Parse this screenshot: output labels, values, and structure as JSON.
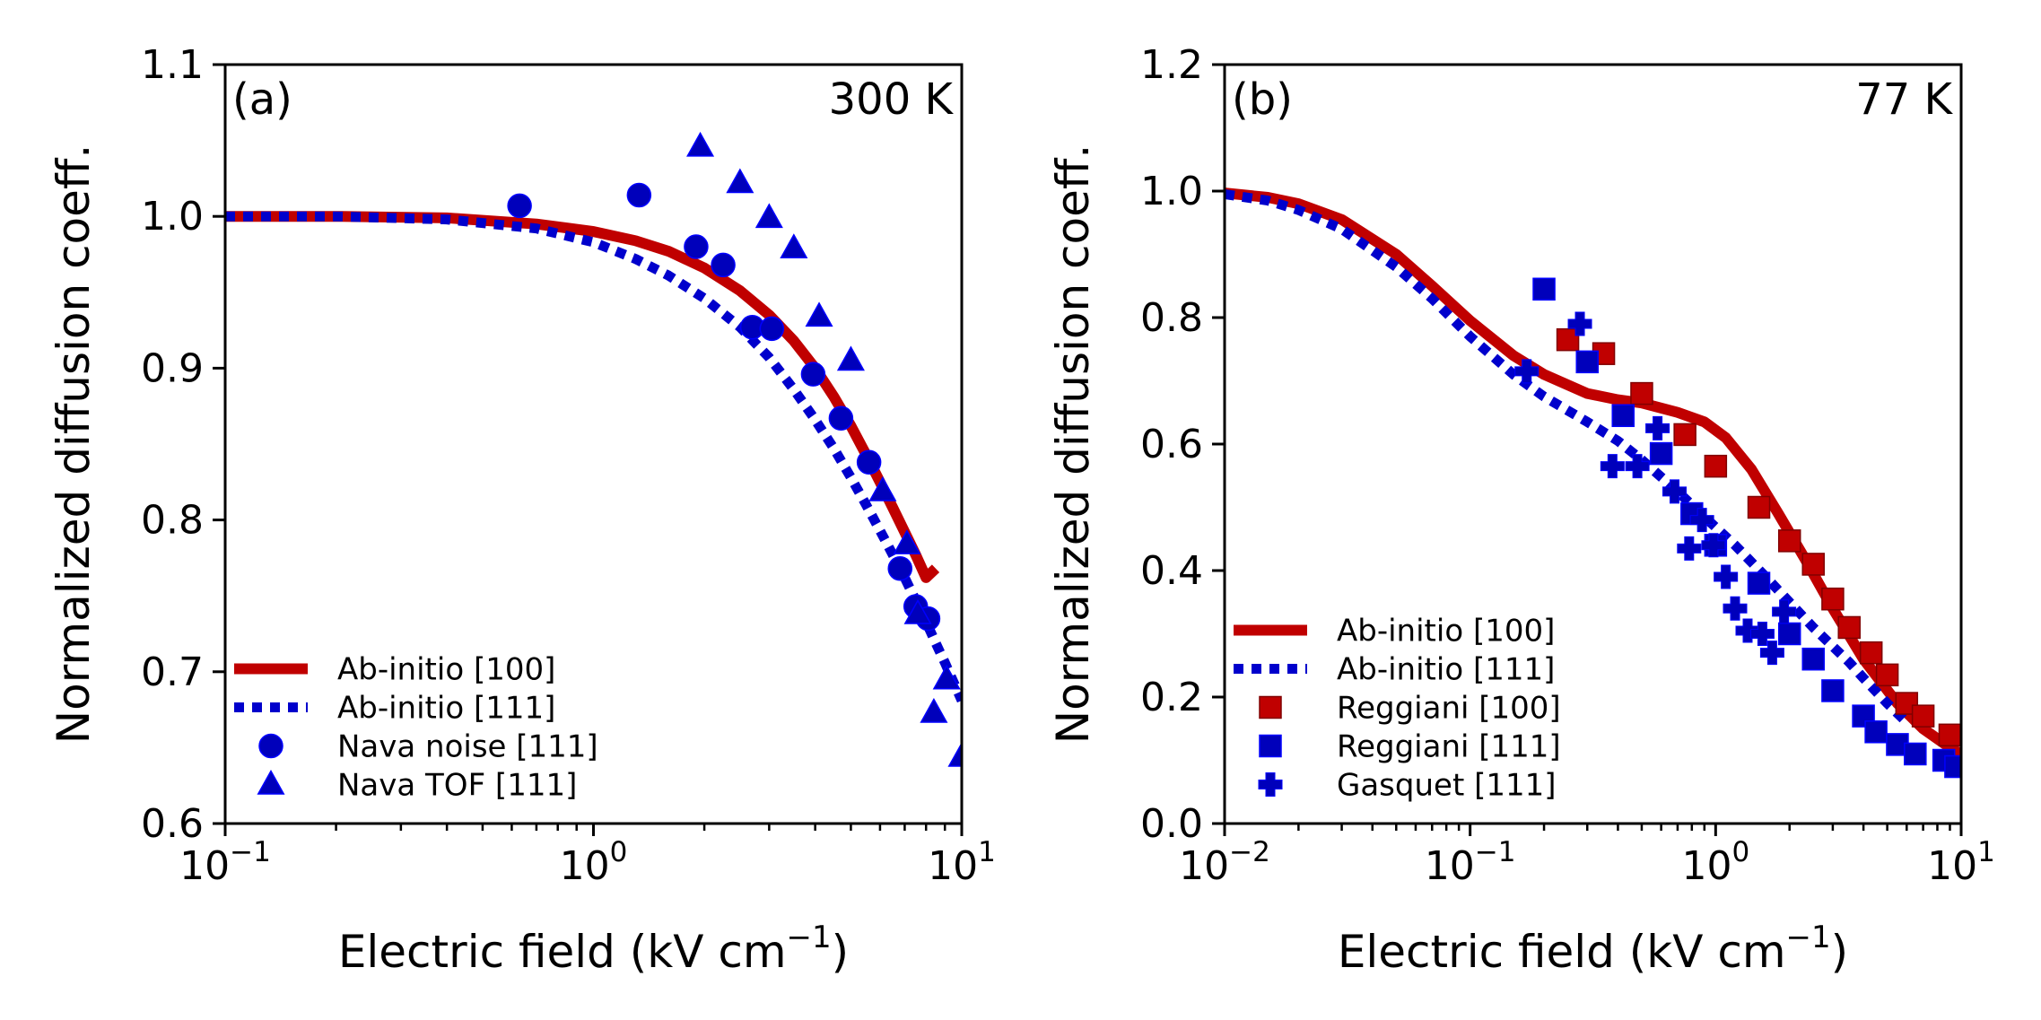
{
  "colors": {
    "red": "#c00000",
    "blue": "#0000cc",
    "marker_fill_red": "#c00000",
    "marker_fill_blue": "#0000bb",
    "marker_edge": "#0000ff"
  },
  "chart_data": [
    {
      "type": "line",
      "panel_label": "(a)",
      "temperature_label": "300 K",
      "xlabel_main": "Electric field (kV cm",
      "xlabel_sup": "−1",
      "xlabel_close": ")",
      "ylabel": "Normalized diffusion coeff.",
      "xscale": "log",
      "xlim": [
        0.1,
        10
      ],
      "ylim": [
        0.6,
        1.1
      ],
      "xticks": [
        {
          "value": 0.1,
          "base": "10",
          "exp": "−1"
        },
        {
          "value": 1,
          "base": "10",
          "exp": "0"
        },
        {
          "value": 10,
          "base": "10",
          "exp": "1"
        }
      ],
      "yticks": [
        {
          "value": 0.6,
          "label": "0.6"
        },
        {
          "value": 0.7,
          "label": "0.7"
        },
        {
          "value": 0.8,
          "label": "0.8"
        },
        {
          "value": 0.9,
          "label": "0.9"
        },
        {
          "value": 1.0,
          "label": "1.0"
        },
        {
          "value": 1.1,
          "label": "1.1"
        }
      ],
      "legend_position": "lower-left",
      "series": [
        {
          "name": "Ab-initio [100]",
          "kind": "line",
          "style": "solid",
          "color": "#c00000",
          "x": [
            0.1,
            0.2,
            0.4,
            0.7,
            1.0,
            1.3,
            1.6,
            2.0,
            2.5,
            3.0,
            3.5,
            4.0,
            4.5,
            5.0,
            5.5,
            6.0,
            6.5,
            7.0,
            7.5,
            8.0,
            8.5
          ],
          "y": [
            1.0,
            1.0,
            0.999,
            0.995,
            0.99,
            0.984,
            0.977,
            0.966,
            0.951,
            0.935,
            0.918,
            0.9,
            0.881,
            0.862,
            0.843,
            0.825,
            0.808,
            0.792,
            0.777,
            0.762,
            0.768
          ]
        },
        {
          "name": "Ab-initio [111]",
          "kind": "line",
          "style": "dotted",
          "color": "#0000cc",
          "x": [
            0.1,
            0.2,
            0.4,
            0.7,
            1.0,
            1.3,
            1.6,
            2.0,
            2.5,
            3.0,
            3.5,
            4.0,
            4.5,
            5.0,
            5.5,
            6.0,
            6.5,
            7.0,
            7.5,
            8.0,
            8.5,
            9.0,
            10.0
          ],
          "y": [
            1.0,
            1.0,
            0.998,
            0.992,
            0.983,
            0.972,
            0.961,
            0.946,
            0.927,
            0.907,
            0.886,
            0.866,
            0.847,
            0.828,
            0.81,
            0.793,
            0.777,
            0.762,
            0.747,
            0.733,
            0.719,
            0.706,
            0.681
          ]
        },
        {
          "name": "Nava noise [111]",
          "kind": "scatter",
          "marker": "circle",
          "color": "#0000bb",
          "x": [
            0.63,
            1.33,
            1.9,
            2.25,
            2.7,
            3.05,
            3.95,
            4.7,
            5.6,
            6.8,
            7.5,
            8.1
          ],
          "y": [
            1.007,
            1.014,
            0.98,
            0.968,
            0.927,
            0.926,
            0.896,
            0.867,
            0.838,
            0.768,
            0.743,
            0.735
          ]
        },
        {
          "name": "Nava TOF [111]",
          "kind": "scatter",
          "marker": "triangle",
          "color": "#0000bb",
          "x": [
            1.95,
            2.5,
            3.0,
            3.5,
            4.1,
            5.0,
            6.1,
            7.1,
            7.6,
            8.4,
            9.1,
            10.0
          ],
          "y": [
            1.046,
            1.022,
            0.999,
            0.979,
            0.934,
            0.905,
            0.819,
            0.784,
            0.738,
            0.673,
            0.695,
            0.644
          ]
        }
      ]
    },
    {
      "type": "line",
      "panel_label": "(b)",
      "temperature_label": "77 K",
      "xlabel_main": "Electric field (kV cm",
      "xlabel_sup": "−1",
      "xlabel_close": ")",
      "ylabel": "Normalized diffusion coeff.",
      "xscale": "log",
      "xlim": [
        0.01,
        10
      ],
      "ylim": [
        0.0,
        1.2
      ],
      "xticks": [
        {
          "value": 0.01,
          "base": "10",
          "exp": "−2"
        },
        {
          "value": 0.1,
          "base": "10",
          "exp": "−1"
        },
        {
          "value": 1,
          "base": "10",
          "exp": "0"
        },
        {
          "value": 10,
          "base": "10",
          "exp": "1"
        }
      ],
      "yticks": [
        {
          "value": 0.0,
          "label": "0.0"
        },
        {
          "value": 0.2,
          "label": "0.2"
        },
        {
          "value": 0.4,
          "label": "0.4"
        },
        {
          "value": 0.6,
          "label": "0.6"
        },
        {
          "value": 0.8,
          "label": "0.8"
        },
        {
          "value": 1.0,
          "label": "1.0"
        },
        {
          "value": 1.2,
          "label": "1.2"
        }
      ],
      "legend_position": "lower-left",
      "series": [
        {
          "name": "Ab-initio [100]",
          "kind": "line",
          "style": "solid",
          "color": "#c00000",
          "x": [
            0.01,
            0.015,
            0.02,
            0.03,
            0.05,
            0.07,
            0.1,
            0.15,
            0.2,
            0.3,
            0.4,
            0.5,
            0.7,
            0.9,
            1.1,
            1.4,
            1.8,
            2.3,
            3.0,
            4.0,
            5.5,
            7.0,
            9.0,
            10.0
          ],
          "y": [
            0.997,
            0.99,
            0.98,
            0.955,
            0.9,
            0.85,
            0.795,
            0.74,
            0.71,
            0.68,
            0.67,
            0.665,
            0.65,
            0.635,
            0.61,
            0.56,
            0.49,
            0.42,
            0.34,
            0.26,
            0.19,
            0.15,
            0.12,
            0.11
          ]
        },
        {
          "name": "Ab-initio [111]",
          "kind": "line",
          "style": "dotted",
          "color": "#0000cc",
          "x": [
            0.01,
            0.015,
            0.02,
            0.03,
            0.05,
            0.07,
            0.1,
            0.15,
            0.2,
            0.3,
            0.4,
            0.5,
            0.7,
            0.9,
            1.2,
            1.6,
            2.0,
            2.5,
            3.0,
            3.5,
            4.0,
            5.0,
            6.0
          ],
          "y": [
            0.995,
            0.985,
            0.97,
            0.94,
            0.88,
            0.83,
            0.77,
            0.71,
            0.675,
            0.635,
            0.605,
            0.575,
            0.525,
            0.485,
            0.44,
            0.39,
            0.35,
            0.31,
            0.28,
            0.255,
            0.23,
            0.19,
            0.16
          ]
        },
        {
          "name": "Reggiani [100]",
          "kind": "scatter",
          "marker": "square",
          "color": "#c00000",
          "x": [
            0.25,
            0.35,
            0.5,
            0.75,
            1.0,
            1.5,
            2.0,
            2.5,
            3.0,
            3.5,
            4.3,
            5.0,
            6.0,
            7.0,
            9.0
          ],
          "y": [
            0.765,
            0.743,
            0.68,
            0.615,
            0.565,
            0.5,
            0.447,
            0.41,
            0.355,
            0.31,
            0.27,
            0.235,
            0.19,
            0.17,
            0.14
          ]
        },
        {
          "name": "Reggiani [111]",
          "kind": "scatter",
          "marker": "square",
          "color": "#0000bb",
          "x": [
            0.2,
            0.3,
            0.42,
            0.6,
            0.8,
            1.0,
            1.5,
            2.0,
            2.5,
            3.0,
            4.0,
            4.5,
            5.5,
            6.5,
            8.5,
            9.5
          ],
          "y": [
            0.845,
            0.73,
            0.645,
            0.585,
            0.49,
            0.44,
            0.38,
            0.3,
            0.26,
            0.21,
            0.17,
            0.145,
            0.125,
            0.11,
            0.1,
            0.09
          ]
        },
        {
          "name": "Gasquet [111]",
          "kind": "scatter",
          "marker": "plus",
          "color": "#0000bb",
          "x": [
            0.17,
            0.28,
            0.38,
            0.48,
            0.58,
            0.68,
            0.78,
            0.88,
            0.98,
            1.1,
            1.2,
            1.35,
            1.55,
            1.7,
            1.9
          ],
          "y": [
            0.715,
            0.79,
            0.565,
            0.565,
            0.625,
            0.525,
            0.435,
            0.48,
            0.44,
            0.39,
            0.34,
            0.305,
            0.3,
            0.27,
            0.335
          ]
        }
      ]
    }
  ]
}
